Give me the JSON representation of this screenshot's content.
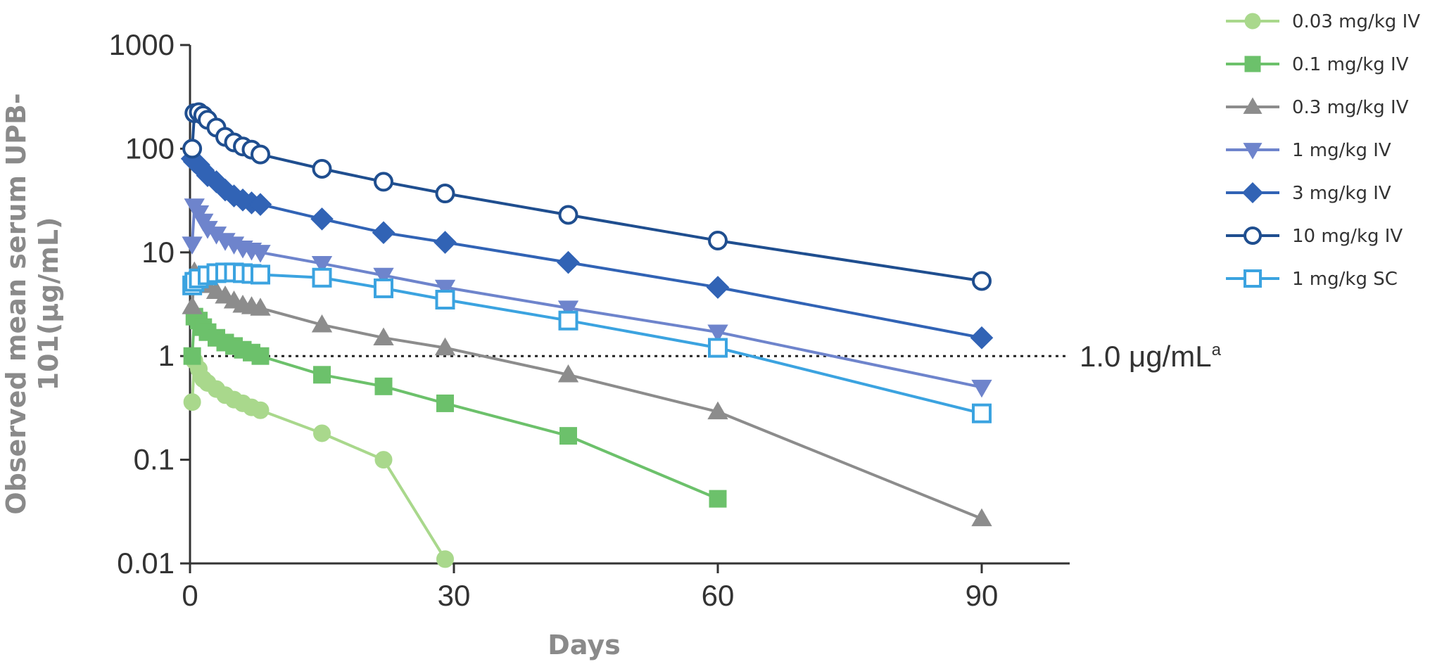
{
  "chart_data": {
    "type": "line",
    "title": "",
    "xlabel": "Days",
    "ylabel_line1": "Observed mean serum UPB-",
    "ylabel_line2": "101(μg/mL)",
    "ylabel": "Observed mean serum UPB-101(μg/mL)",
    "xlim": [
      0,
      100
    ],
    "ylim": [
      0.01,
      1000
    ],
    "yscale": "log",
    "x_ticks": [
      0,
      30,
      60,
      90
    ],
    "x_tick_labels": [
      "0",
      "30",
      "60",
      "90"
    ],
    "y_ticks": [
      0.01,
      0.1,
      1,
      10,
      100,
      1000
    ],
    "y_tick_labels": [
      "0.01",
      "0.1",
      "1",
      "10",
      "100",
      "1000"
    ],
    "grid": false,
    "legend_position": "top-right",
    "reference_line": {
      "y": 1.0,
      "label": "1.0 μg/mL",
      "superscript": "a",
      "style": "dotted"
    },
    "series": [
      {
        "name": "0.03 mg/kg IV",
        "color": "#a9d88c",
        "marker": "circle",
        "filled": true,
        "x": [
          0.25,
          0.5,
          1,
          1.5,
          2,
          3,
          4,
          5,
          6,
          7,
          8,
          15,
          22,
          29
        ],
        "y": [
          0.36,
          0.9,
          0.75,
          0.6,
          0.55,
          0.48,
          0.42,
          0.38,
          0.35,
          0.32,
          0.3,
          0.18,
          0.1,
          0.011
        ]
      },
      {
        "name": "0.1 mg/kg IV",
        "color": "#6cc16b",
        "marker": "square",
        "filled": true,
        "x": [
          0.25,
          0.5,
          1,
          1.5,
          2,
          3,
          4,
          5,
          6,
          7,
          8,
          15,
          22,
          29,
          43,
          60
        ],
        "y": [
          1.0,
          2.4,
          2.2,
          1.9,
          1.7,
          1.5,
          1.35,
          1.25,
          1.15,
          1.08,
          1.0,
          0.66,
          0.51,
          0.35,
          0.17,
          0.042
        ]
      },
      {
        "name": "0.3 mg/kg IV",
        "color": "#8c8c8c",
        "marker": "triangle-up",
        "filled": true,
        "x": [
          0.25,
          0.5,
          1,
          1.5,
          2,
          3,
          4,
          5,
          6,
          7,
          8,
          15,
          22,
          29,
          43,
          60,
          90
        ],
        "y": [
          3.0,
          6.5,
          5.8,
          5.2,
          4.8,
          4.2,
          3.8,
          3.4,
          3.1,
          3.0,
          2.9,
          2.0,
          1.5,
          1.2,
          0.66,
          0.29,
          0.027
        ]
      },
      {
        "name": "1 mg/kg IV",
        "color": "#6e84cc",
        "marker": "triangle-down",
        "filled": true,
        "x": [
          0.25,
          0.5,
          1,
          1.5,
          2,
          3,
          4,
          5,
          6,
          7,
          8,
          15,
          22,
          29,
          43,
          60,
          90
        ],
        "y": [
          12,
          28,
          24,
          20,
          17,
          15,
          13,
          12,
          11,
          10.5,
          10,
          7.8,
          6.0,
          4.6,
          2.9,
          1.7,
          0.5
        ]
      },
      {
        "name": "3 mg/kg IV",
        "color": "#3163b5",
        "marker": "diamond",
        "filled": true,
        "x": [
          0.25,
          0.5,
          1,
          1.5,
          2,
          3,
          4,
          5,
          6,
          7,
          8,
          15,
          22,
          29,
          43,
          60,
          90
        ],
        "y": [
          80,
          75,
          70,
          62,
          55,
          48,
          40,
          35,
          32,
          30,
          29,
          21,
          15.5,
          12.5,
          8.0,
          4.6,
          1.5
        ]
      },
      {
        "name": "10 mg/kg IV",
        "color": "#1f4e8f",
        "marker": "circle",
        "filled": false,
        "x": [
          0.25,
          0.5,
          1,
          1.5,
          2,
          3,
          4,
          5,
          6,
          7,
          8,
          15,
          22,
          29,
          43,
          60,
          90
        ],
        "y": [
          100,
          220,
          225,
          210,
          190,
          160,
          130,
          115,
          105,
          98,
          88,
          64,
          48,
          37,
          23,
          13,
          5.3
        ]
      },
      {
        "name": "1 mg/kg SC",
        "color": "#3ba3e0",
        "marker": "square",
        "filled": false,
        "x": [
          0.25,
          0.5,
          1,
          2,
          3,
          4,
          5,
          6,
          7,
          8,
          15,
          22,
          29,
          43,
          60,
          90
        ],
        "y": [
          4.8,
          5.2,
          5.6,
          6.0,
          6.3,
          6.4,
          6.4,
          6.3,
          6.2,
          6.1,
          5.7,
          4.5,
          3.5,
          2.2,
          1.2,
          0.28
        ]
      }
    ]
  }
}
